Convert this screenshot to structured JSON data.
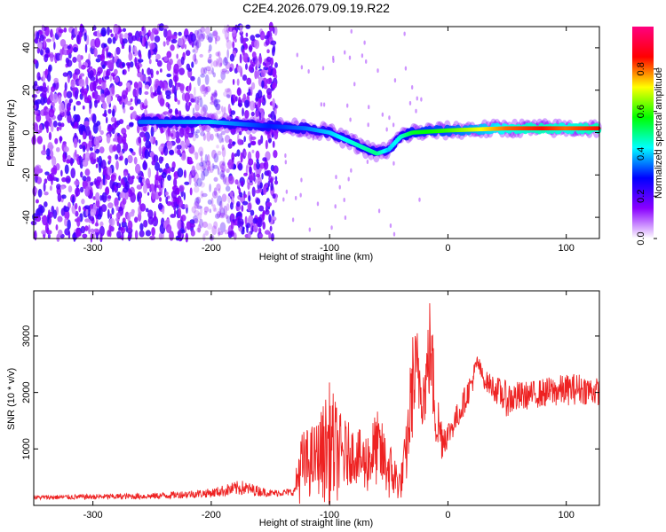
{
  "figure": {
    "title": "C2E4.2026.079.09.19.R22"
  },
  "chart_data": [
    {
      "type": "heatmap",
      "xlabel": "Height of straight line (km)",
      "ylabel": "Frequency (Hz)",
      "xlim": [
        -350,
        128
      ],
      "ylim": [
        -50,
        50
      ],
      "xticks": [
        -300,
        -200,
        -100,
        0,
        100
      ],
      "yticks": [
        -40,
        -20,
        0,
        20,
        40
      ],
      "colorbar": {
        "label": "Normalized spectral amplitude",
        "range": [
          0,
          1
        ],
        "ticks": [
          0.0,
          0.2,
          0.4,
          0.6,
          0.8
        ],
        "tick_labels": [
          "0.0",
          "0.2",
          "0.4",
          "0.6",
          "0.8"
        ],
        "colors": [
          "#ffffff",
          "#8a00ff",
          "#0000ff",
          "#00ffff",
          "#00ff00",
          "#ffff00",
          "#ff0000",
          "#ff0080"
        ]
      },
      "ridge": {
        "x": [
          -260,
          -200,
          -150,
          -120,
          -100,
          -80,
          -60,
          -50,
          -40,
          -30,
          0,
          50,
          80,
          100,
          128
        ],
        "y": [
          5,
          5,
          3,
          2,
          0,
          -5,
          -10,
          -8,
          -2,
          0,
          1,
          2,
          2,
          2,
          2
        ],
        "amplitude": [
          0.35,
          0.4,
          0.3,
          0.35,
          0.4,
          0.45,
          0.5,
          0.4,
          0.45,
          0.55,
          0.6,
          0.8,
          0.85,
          0.8,
          0.85
        ]
      },
      "noise_region": {
        "x_range": [
          -350,
          -145
        ],
        "amplitude": 0.2
      }
    },
    {
      "type": "line",
      "xlabel": "Height of straight line (km)",
      "ylabel": "SNR (10 * v/v)",
      "xlim": [
        -350,
        128
      ],
      "ylim": [
        0,
        3800
      ],
      "xticks": [
        -300,
        -200,
        -100,
        0,
        100
      ],
      "yticks": [
        1000,
        2000,
        3000
      ],
      "color": "#ee2222",
      "x": [
        -350,
        -300,
        -250,
        -200,
        -175,
        -150,
        -130,
        -125,
        -110,
        -100,
        -90,
        -80,
        -70,
        -60,
        -50,
        -40,
        -35,
        -30,
        -25,
        -20,
        -15,
        -10,
        -5,
        0,
        10,
        20,
        25,
        30,
        40,
        50,
        70,
        90,
        110,
        128
      ],
      "y": [
        130,
        140,
        150,
        200,
        280,
        200,
        220,
        500,
        700,
        750,
        700,
        800,
        600,
        850,
        500,
        300,
        800,
        1900,
        2100,
        1800,
        2600,
        1400,
        1100,
        1200,
        1600,
        2100,
        2500,
        2200,
        2000,
        1800,
        1900,
        1950,
        2000,
        1950
      ],
      "max_envelope": [
        180,
        200,
        220,
        300,
        450,
        280,
        300,
        1300,
        1500,
        2200,
        1600,
        1400,
        1300,
        1700,
        1200,
        650,
        1500,
        3100,
        3200,
        2500,
        3800,
        2200,
        1600,
        1500,
        1900,
        2400,
        2700,
        2400,
        2300,
        2200,
        2200,
        2300,
        2350,
        2250
      ]
    }
  ]
}
